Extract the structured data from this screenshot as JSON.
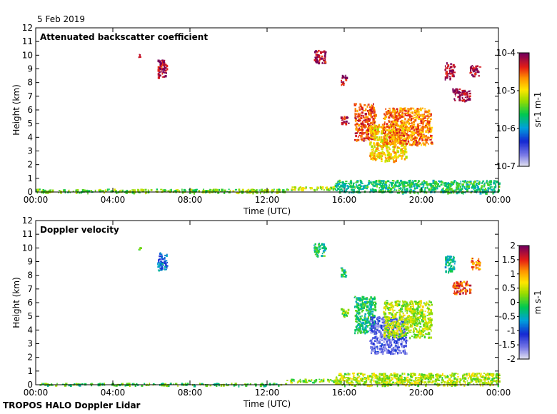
{
  "date": "5 Feb 2019",
  "footer": "TROPOS HALO Doppler Lidar",
  "chart_data": [
    {
      "type": "heatmap",
      "title": "Attenuated backscatter coefficient",
      "xlabel": "Time (UTC)",
      "ylabel": "Height (km)",
      "x_ticks": [
        "00:00",
        "04:00",
        "08:00",
        "12:00",
        "16:00",
        "20:00",
        "00:00"
      ],
      "y_ticks": [
        "0",
        "1",
        "2",
        "3",
        "4",
        "5",
        "6",
        "7",
        "8",
        "9",
        "10",
        "11",
        "12"
      ],
      "xlim_hours": [
        0,
        24
      ],
      "ylim_km": [
        0,
        12
      ],
      "colorbar": {
        "label": "sr-1 m-1",
        "scale": "log",
        "range": [
          1e-07,
          0.0001
        ],
        "ticks": [
          "10-7",
          "10-6",
          "10-5",
          "10-4"
        ]
      },
      "features": [
        {
          "t0": 0.0,
          "t1": 13.0,
          "h0": 0.0,
          "h1": 0.25,
          "level": 0.55
        },
        {
          "t0": 13.0,
          "t1": 15.5,
          "h0": 0.2,
          "h1": 0.45,
          "level": 0.6
        },
        {
          "t0": 15.5,
          "t1": 24.0,
          "h0": 0.0,
          "h1": 0.9,
          "level": 0.45
        },
        {
          "t0": 5.3,
          "t1": 5.4,
          "h0": 9.9,
          "h1": 10.1,
          "level": 0.95
        },
        {
          "t0": 6.3,
          "t1": 6.8,
          "h0": 8.4,
          "h1": 9.7,
          "level": 0.95
        },
        {
          "t0": 14.4,
          "t1": 15.0,
          "h0": 9.4,
          "h1": 10.4,
          "level": 0.95
        },
        {
          "t0": 15.8,
          "t1": 16.1,
          "h0": 7.9,
          "h1": 8.6,
          "level": 0.95
        },
        {
          "t0": 15.8,
          "t1": 16.2,
          "h0": 5.0,
          "h1": 5.6,
          "level": 0.92
        },
        {
          "t0": 16.5,
          "t1": 17.6,
          "h0": 3.8,
          "h1": 6.5,
          "level": 0.85
        },
        {
          "t0": 17.3,
          "t1": 19.2,
          "h0": 2.3,
          "h1": 5.0,
          "level": 0.7
        },
        {
          "t0": 18.0,
          "t1": 20.5,
          "h0": 3.5,
          "h1": 6.2,
          "level": 0.8
        },
        {
          "t0": 21.2,
          "t1": 21.7,
          "h0": 8.3,
          "h1": 9.5,
          "level": 0.97
        },
        {
          "t0": 21.6,
          "t1": 22.5,
          "h0": 6.7,
          "h1": 7.6,
          "level": 0.97
        },
        {
          "t0": 22.5,
          "t1": 23.0,
          "h0": 8.5,
          "h1": 9.3,
          "level": 0.97
        }
      ]
    },
    {
      "type": "heatmap",
      "title": "Doppler velocity",
      "xlabel": "Time (UTC)",
      "ylabel": "Height (km)",
      "x_ticks": [
        "00:00",
        "04:00",
        "08:00",
        "12:00",
        "16:00",
        "20:00",
        "00:00"
      ],
      "y_ticks": [
        "0",
        "1",
        "2",
        "3",
        "4",
        "5",
        "6",
        "7",
        "8",
        "9",
        "10",
        "11",
        "12"
      ],
      "xlim_hours": [
        0,
        24
      ],
      "ylim_km": [
        0,
        12
      ],
      "colorbar": {
        "label": "m s-1",
        "range": [
          -2,
          2
        ],
        "ticks": [
          "-2",
          "-1.5",
          "-1",
          "-0.5",
          "0",
          "0.5",
          "1",
          "1.5",
          "2"
        ]
      },
      "features": [
        {
          "t0": 0.0,
          "t1": 13.0,
          "h0": 0.0,
          "h1": 0.15,
          "level": 0.5
        },
        {
          "t0": 13.0,
          "t1": 15.5,
          "h0": 0.2,
          "h1": 0.45,
          "level": 0.55
        },
        {
          "t0": 15.5,
          "t1": 24.0,
          "h0": 0.0,
          "h1": 0.9,
          "level": 0.6
        },
        {
          "t0": 5.3,
          "t1": 5.4,
          "h0": 9.9,
          "h1": 10.1,
          "level": 0.5
        },
        {
          "t0": 6.3,
          "t1": 6.8,
          "h0": 8.4,
          "h1": 9.7,
          "level": 0.3
        },
        {
          "t0": 14.4,
          "t1": 15.0,
          "h0": 9.4,
          "h1": 10.4,
          "level": 0.45
        },
        {
          "t0": 15.8,
          "t1": 16.1,
          "h0": 7.9,
          "h1": 8.6,
          "level": 0.45
        },
        {
          "t0": 15.8,
          "t1": 16.2,
          "h0": 5.0,
          "h1": 5.6,
          "level": 0.55
        },
        {
          "t0": 16.5,
          "t1": 17.6,
          "h0": 3.8,
          "h1": 6.5,
          "level": 0.45
        },
        {
          "t0": 17.3,
          "t1": 19.2,
          "h0": 2.3,
          "h1": 5.0,
          "level": 0.15
        },
        {
          "t0": 18.0,
          "t1": 20.5,
          "h0": 3.5,
          "h1": 6.2,
          "level": 0.6
        },
        {
          "t0": 21.2,
          "t1": 21.7,
          "h0": 8.3,
          "h1": 9.5,
          "level": 0.4
        },
        {
          "t0": 21.6,
          "t1": 22.5,
          "h0": 6.7,
          "h1": 7.6,
          "level": 0.85
        },
        {
          "t0": 22.5,
          "t1": 23.0,
          "h0": 8.5,
          "h1": 9.3,
          "level": 0.8
        }
      ]
    }
  ]
}
